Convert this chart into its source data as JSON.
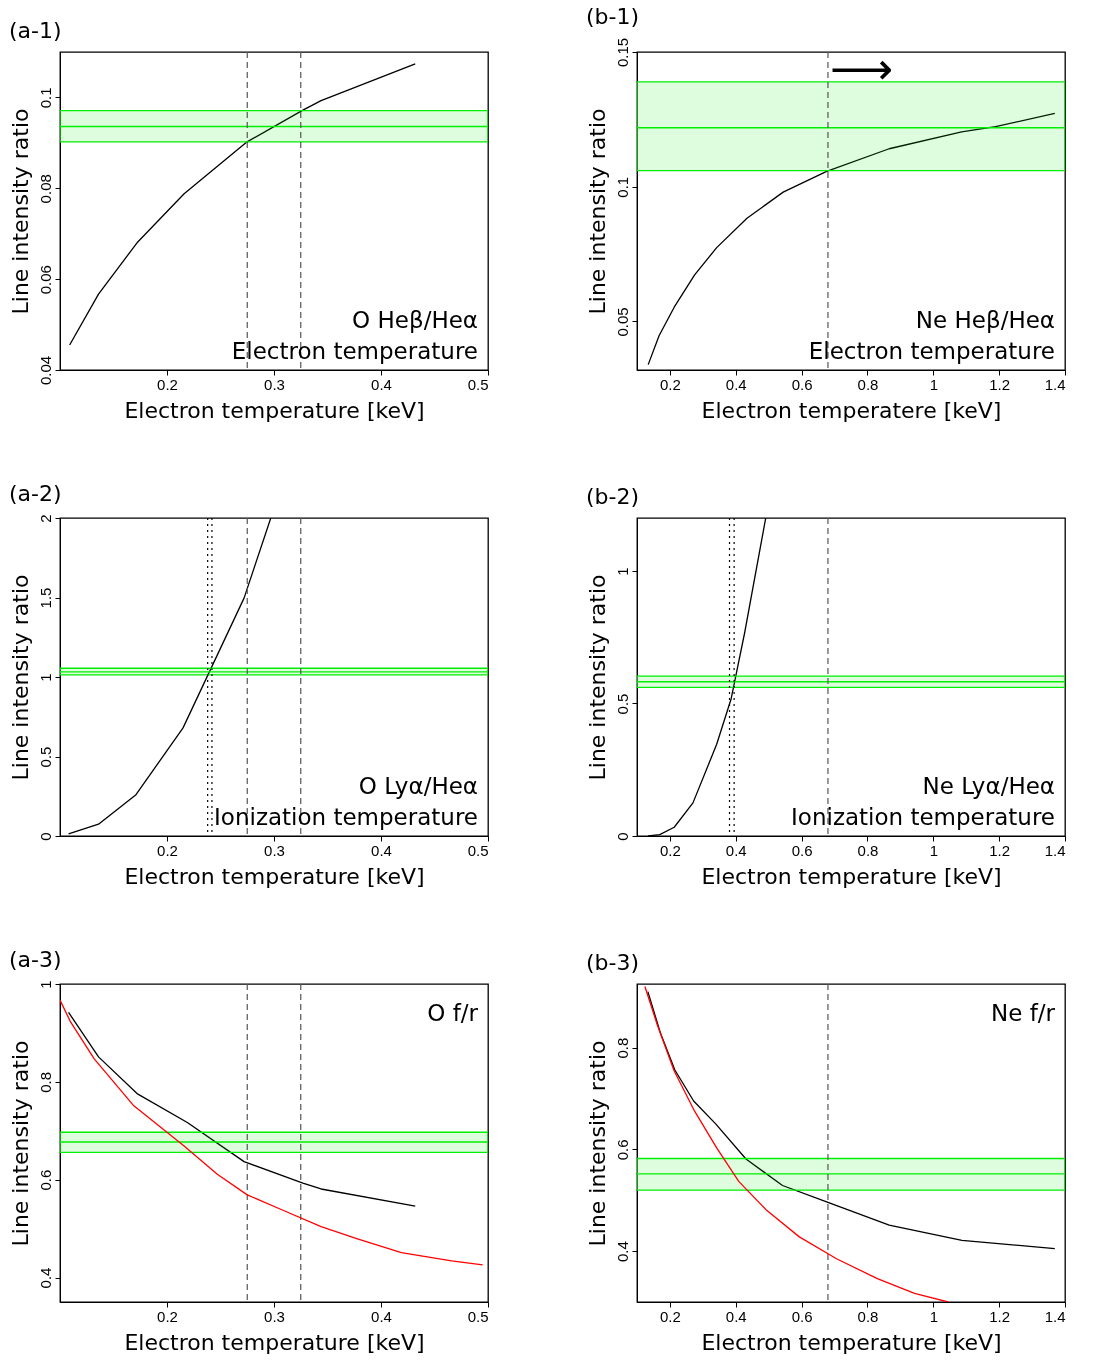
{
  "chart_data": [
    {
      "type": "line",
      "title": "(a-1)",
      "xlabel": "Electron temperature [keV]",
      "ylabel": "Line intensity ratio",
      "xlim": [
        0.1,
        0.5
      ],
      "xticks": [
        0.2,
        0.3,
        0.4,
        0.5
      ],
      "ylim": [
        0.04,
        0.11
      ],
      "yticks": [
        0.04,
        0.06,
        0.08,
        0.1
      ],
      "grid": false,
      "series": [
        {
          "color": "#000000",
          "x": [
            0.109,
            0.136,
            0.172,
            0.216,
            0.274,
            0.327,
            0.344,
            0.432
          ],
          "values": [
            0.0455,
            0.0567,
            0.068,
            0.0788,
            0.0901,
            0.0972,
            0.0993,
            0.1074
          ]
        }
      ],
      "bands": [
        {
          "axis": "y",
          "from": 0.0902,
          "to": 0.0971,
          "color": "#00ee00"
        }
      ],
      "ref_lines": [
        {
          "axis": "y",
          "value": 0.0936,
          "color": "#00ee00",
          "line_style": "solid"
        },
        {
          "axis": "x",
          "value": 0.275,
          "color": "#555555",
          "line_style": "dashed"
        },
        {
          "axis": "x",
          "value": 0.325,
          "color": "#555555",
          "line_style": "dashed"
        }
      ],
      "annotations": [
        "O Heβ/Heα",
        "Electron temperature"
      ]
    },
    {
      "type": "line",
      "title": "(b-1)",
      "xlabel": "Electron temperatere [keV]",
      "ylabel": "Line intensity ratio",
      "xlim": [
        0.1,
        1.4
      ],
      "xticks": [
        0.2,
        0.4,
        0.6,
        0.8,
        1,
        1.2,
        1.4
      ],
      "ylim": [
        0.032,
        0.15
      ],
      "yticks": [
        0.05,
        0.1,
        0.15
      ],
      "grid": false,
      "series": [
        {
          "color": "#000000",
          "x": [
            0.134,
            0.167,
            0.213,
            0.275,
            0.342,
            0.434,
            0.544,
            0.676,
            0.866,
            1.086,
            1.189,
            1.369
          ],
          "values": [
            0.034,
            0.0447,
            0.0553,
            0.0673,
            0.0774,
            0.0883,
            0.098,
            0.1057,
            0.1141,
            0.1204,
            0.1223,
            0.1272
          ]
        }
      ],
      "bands": [
        {
          "axis": "y",
          "from": 0.106,
          "to": 0.1389,
          "color": "#00ee00"
        }
      ],
      "ref_lines": [
        {
          "axis": "y",
          "value": 0.1219,
          "color": "#00ee00",
          "line_style": "solid"
        },
        {
          "axis": "x",
          "value": 0.68,
          "color": "#555555",
          "line_style": "dashed"
        }
      ],
      "annotations": [
        "Ne Heβ/Heα",
        "Electron temperature",
        {
          "text": "⟶",
          "x": 0.68,
          "y": 0.143
        }
      ]
    },
    {
      "type": "line",
      "title": "(a-2)",
      "xlabel": "Electron temperature [keV]",
      "ylabel": "Line intensity ratio",
      "xlim": [
        0.1,
        0.5
      ],
      "xticks": [
        0.2,
        0.3,
        0.4,
        0.5
      ],
      "ylim": [
        0,
        2
      ],
      "yticks": [
        0,
        0.5,
        1,
        1.5,
        2
      ],
      "grid": false,
      "series": [
        {
          "color": "#000000",
          "x": [
            0.108,
            0.136,
            0.171,
            0.215,
            0.272,
            0.297
          ],
          "values": [
            0.013,
            0.074,
            0.26,
            0.68,
            1.496,
            2.0
          ]
        }
      ],
      "bands": [
        {
          "axis": "y",
          "from": 1.013,
          "to": 1.055,
          "color": "#00ee00"
        }
      ],
      "ref_lines": [
        {
          "axis": "y",
          "value": 1.032,
          "color": "#00ee00",
          "line_style": "solid"
        },
        {
          "axis": "x",
          "value": 0.238,
          "color": "#000000",
          "line_style": "dotted"
        },
        {
          "axis": "x",
          "value": 0.242,
          "color": "#000000",
          "line_style": "dotted"
        },
        {
          "axis": "x",
          "value": 0.275,
          "color": "#555555",
          "line_style": "dashed"
        },
        {
          "axis": "x",
          "value": 0.325,
          "color": "#555555",
          "line_style": "dashed"
        }
      ],
      "annotations": [
        "O Lyα/Heα",
        "Ionization temperature"
      ]
    },
    {
      "type": "line",
      "title": "(b-2)",
      "xlabel": "Electron temperature [keV]",
      "ylabel": "Line intensity ratio",
      "xlim": [
        0.1,
        1.4
      ],
      "xticks": [
        0.2,
        0.4,
        0.6,
        0.8,
        1,
        1.2,
        1.4
      ],
      "ylim": [
        0,
        1.2
      ],
      "yticks": [
        0,
        0.5,
        1
      ],
      "grid": false,
      "series": [
        {
          "color": "#000000",
          "x": [
            0.134,
            0.169,
            0.213,
            0.27,
            0.342,
            0.386,
            0.427,
            0.491
          ],
          "values": [
            0,
            0.005,
            0.033,
            0.125,
            0.346,
            0.518,
            0.767,
            1.2
          ]
        }
      ],
      "bands": [
        {
          "axis": "y",
          "from": 0.561,
          "to": 0.603,
          "color": "#00ee00"
        }
      ],
      "ref_lines": [
        {
          "axis": "y",
          "value": 0.582,
          "color": "#00ee00",
          "line_style": "solid"
        },
        {
          "axis": "x",
          "value": 0.381,
          "color": "#000000",
          "line_style": "dotted"
        },
        {
          "axis": "x",
          "value": 0.395,
          "color": "#000000",
          "line_style": "dotted"
        },
        {
          "axis": "x",
          "value": 0.68,
          "color": "#555555",
          "line_style": "dashed"
        }
      ],
      "annotations": [
        "Ne Lyα/Heα",
        "Ionization temperature"
      ]
    },
    {
      "type": "line",
      "title": "(a-3)",
      "xlabel": "Electron temperature [keV]",
      "ylabel": "Line intensity ratio",
      "xlim": [
        0.1,
        0.5
      ],
      "xticks": [
        0.2,
        0.3,
        0.4,
        0.5
      ],
      "ylim": [
        0.35,
        1
      ],
      "yticks": [
        0.4,
        0.6,
        0.8,
        1
      ],
      "grid": false,
      "series": [
        {
          "color": "#000000",
          "x": [
            0.108,
            0.136,
            0.172,
            0.219,
            0.272,
            0.327,
            0.344,
            0.432
          ],
          "values": [
            0.942,
            0.851,
            0.776,
            0.717,
            0.637,
            0.593,
            0.581,
            0.546
          ]
        },
        {
          "color": "#ff0000",
          "x": [
            0.1,
            0.11,
            0.132,
            0.169,
            0.216,
            0.247,
            0.275,
            0.31,
            0.344,
            0.378,
            0.419,
            0.466,
            0.495
          ],
          "values": [
            0.967,
            0.922,
            0.847,
            0.751,
            0.669,
            0.611,
            0.569,
            0.536,
            0.504,
            0.479,
            0.451,
            0.434,
            0.426
          ]
        }
      ],
      "bands": [
        {
          "axis": "y",
          "from": 0.656,
          "to": 0.697,
          "color": "#00ee00"
        }
      ],
      "ref_lines": [
        {
          "axis": "y",
          "value": 0.677,
          "color": "#00ee00",
          "line_style": "solid"
        },
        {
          "axis": "x",
          "value": 0.275,
          "color": "#555555",
          "line_style": "dashed"
        },
        {
          "axis": "x",
          "value": 0.325,
          "color": "#555555",
          "line_style": "dashed"
        }
      ],
      "annotations": [
        "O f/r"
      ]
    },
    {
      "type": "line",
      "title": "(b-3)",
      "xlabel": "Electron temperature [keV]",
      "ylabel": "Line intensity ratio",
      "xlim": [
        0.1,
        1.4
      ],
      "xticks": [
        0.2,
        0.4,
        0.6,
        0.8,
        1,
        1.2,
        1.4
      ],
      "ylim": [
        0.3,
        0.925
      ],
      "yticks": [
        0.4,
        0.6,
        0.8
      ],
      "grid": false,
      "series": [
        {
          "color": "#000000",
          "x": [
            0.133,
            0.172,
            0.215,
            0.272,
            0.339,
            0.431,
            0.542,
            0.676,
            0.866,
            1.087,
            1.369
          ],
          "values": [
            0.91,
            0.827,
            0.756,
            0.695,
            0.65,
            0.581,
            0.529,
            0.497,
            0.451,
            0.421,
            0.405
          ]
        },
        {
          "color": "#ff0000",
          "x": [
            0.124,
            0.162,
            0.213,
            0.275,
            0.342,
            0.409,
            0.491,
            0.593,
            0.706,
            0.83,
            0.943,
            1.045
          ],
          "values": [
            0.92,
            0.844,
            0.754,
            0.675,
            0.603,
            0.537,
            0.482,
            0.428,
            0.385,
            0.346,
            0.317,
            0.3
          ]
        }
      ],
      "bands": [
        {
          "axis": "y",
          "from": 0.52,
          "to": 0.582,
          "color": "#00ee00"
        }
      ],
      "ref_lines": [
        {
          "axis": "y",
          "value": 0.552,
          "color": "#00ee00",
          "line_style": "solid"
        },
        {
          "axis": "x",
          "value": 0.68,
          "color": "#555555",
          "line_style": "dashed"
        }
      ],
      "annotations": [
        "Ne f/r"
      ]
    }
  ]
}
